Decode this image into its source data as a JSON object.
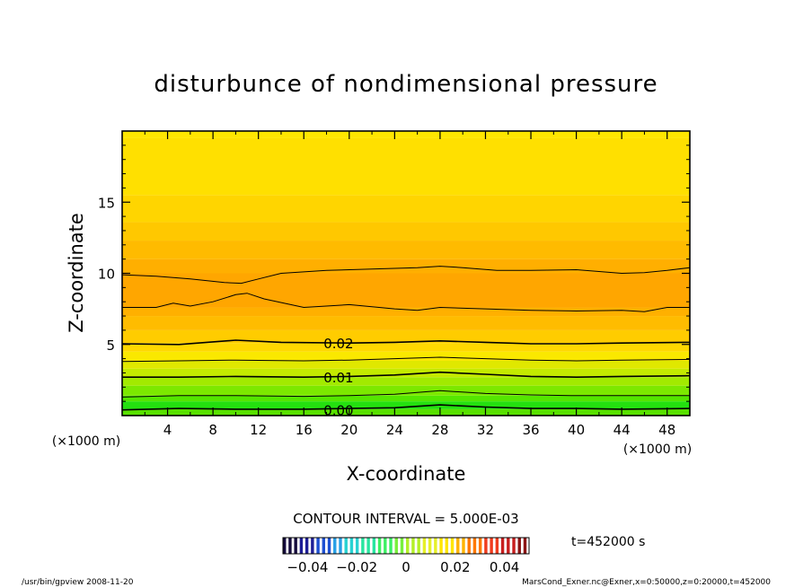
{
  "chart_data": {
    "type": "heatmap",
    "subtype": "filled-contour",
    "title": "disturbunce of nondimensional pressure",
    "xlabel": "X-coordinate",
    "ylabel": "Z-coordinate",
    "x_unit_note": "(×1000 m)",
    "y_unit_note": "(×1000 m)",
    "xlim": [
      0,
      50
    ],
    "ylim": [
      0,
      20
    ],
    "x_ticks": [
      4,
      8,
      12,
      16,
      20,
      24,
      28,
      32,
      36,
      40,
      44,
      48
    ],
    "y_ticks": [
      5,
      10,
      15
    ],
    "contour_interval_label": "CONTOUR INTERVAL = 5.000E-03",
    "contour_labels": [
      {
        "text": "0.02",
        "x": 17.5,
        "z": 5.1
      },
      {
        "text": "0.01",
        "x": 17.5,
        "z": 2.7
      },
      {
        "text": "0.00",
        "x": 17.5,
        "z": 0.4
      }
    ],
    "contour_lines": [
      {
        "level": 0.0,
        "points": [
          [
            0,
            0.4
          ],
          [
            5,
            0.5
          ],
          [
            10,
            0.45
          ],
          [
            16,
            0.45
          ],
          [
            20,
            0.5
          ],
          [
            24,
            0.55
          ],
          [
            28,
            0.75
          ],
          [
            32,
            0.6
          ],
          [
            36,
            0.5
          ],
          [
            40,
            0.5
          ],
          [
            44,
            0.45
          ],
          [
            50,
            0.5
          ]
        ]
      },
      {
        "level": 0.005,
        "points": [
          [
            0,
            1.3
          ],
          [
            5,
            1.4
          ],
          [
            10,
            1.4
          ],
          [
            16,
            1.35
          ],
          [
            20,
            1.4
          ],
          [
            24,
            1.5
          ],
          [
            28,
            1.75
          ],
          [
            32,
            1.55
          ],
          [
            36,
            1.45
          ],
          [
            40,
            1.4
          ],
          [
            44,
            1.4
          ],
          [
            50,
            1.4
          ]
        ]
      },
      {
        "level": 0.01,
        "points": [
          [
            0,
            2.7
          ],
          [
            5,
            2.7
          ],
          [
            10,
            2.75
          ],
          [
            16,
            2.7
          ],
          [
            20,
            2.75
          ],
          [
            24,
            2.85
          ],
          [
            28,
            3.05
          ],
          [
            32,
            2.9
          ],
          [
            36,
            2.75
          ],
          [
            40,
            2.7
          ],
          [
            44,
            2.75
          ],
          [
            50,
            2.8
          ]
        ]
      },
      {
        "level": 0.015,
        "points": [
          [
            0,
            3.8
          ],
          [
            5,
            3.85
          ],
          [
            10,
            3.9
          ],
          [
            16,
            3.85
          ],
          [
            20,
            3.9
          ],
          [
            24,
            4.0
          ],
          [
            28,
            4.1
          ],
          [
            32,
            4.0
          ],
          [
            36,
            3.9
          ],
          [
            40,
            3.85
          ],
          [
            44,
            3.9
          ],
          [
            50,
            3.95
          ]
        ]
      },
      {
        "level": 0.02,
        "points": [
          [
            0,
            5.05
          ],
          [
            5,
            5.0
          ],
          [
            10,
            5.3
          ],
          [
            14,
            5.15
          ],
          [
            20,
            5.1
          ],
          [
            24,
            5.15
          ],
          [
            28,
            5.25
          ],
          [
            32,
            5.15
          ],
          [
            36,
            5.05
          ],
          [
            40,
            5.05
          ],
          [
            44,
            5.1
          ],
          [
            50,
            5.15
          ]
        ]
      },
      {
        "level": 0.025,
        "points": [
          [
            0,
            7.6
          ],
          [
            3,
            7.6
          ],
          [
            4.5,
            7.9
          ],
          [
            6,
            7.7
          ],
          [
            8,
            8.0
          ],
          [
            10,
            8.5
          ],
          [
            11,
            8.6
          ],
          [
            12.5,
            8.2
          ],
          [
            16,
            7.6
          ],
          [
            20,
            7.8
          ],
          [
            24,
            7.5
          ],
          [
            26,
            7.4
          ],
          [
            28,
            7.6
          ],
          [
            32,
            7.5
          ],
          [
            36,
            7.4
          ],
          [
            40,
            7.35
          ],
          [
            44,
            7.4
          ],
          [
            46,
            7.3
          ],
          [
            48,
            7.6
          ],
          [
            50,
            7.6
          ]
        ]
      },
      {
        "level": 0.025,
        "points": [
          [
            0,
            9.9
          ],
          [
            3,
            9.8
          ],
          [
            6,
            9.6
          ],
          [
            9,
            9.35
          ],
          [
            10.5,
            9.3
          ],
          [
            12,
            9.6
          ],
          [
            14,
            10.0
          ],
          [
            18,
            10.2
          ],
          [
            22,
            10.3
          ],
          [
            26,
            10.4
          ],
          [
            28,
            10.5
          ],
          [
            30,
            10.4
          ],
          [
            33,
            10.2
          ],
          [
            36,
            10.2
          ],
          [
            40,
            10.25
          ],
          [
            44,
            10.0
          ],
          [
            46,
            10.05
          ],
          [
            48,
            10.2
          ],
          [
            50,
            10.4
          ]
        ]
      }
    ],
    "filled_bands": [
      {
        "z_bottom": 0.0,
        "z_top": 0.45,
        "color": "#58e000"
      },
      {
        "z_bottom": 0.45,
        "z_top": 1.0,
        "color": "#24e010"
      },
      {
        "z_bottom": 1.0,
        "z_top": 1.4,
        "color": "#54e600"
      },
      {
        "z_bottom": 1.4,
        "z_top": 2.1,
        "color": "#7ce800"
      },
      {
        "z_bottom": 2.1,
        "z_top": 2.7,
        "color": "#a2ea00"
      },
      {
        "z_bottom": 2.7,
        "z_top": 3.3,
        "color": "#c4ea00"
      },
      {
        "z_bottom": 3.3,
        "z_top": 3.85,
        "color": "#e0e800"
      },
      {
        "z_bottom": 3.85,
        "z_top": 4.5,
        "color": "#fae800"
      },
      {
        "z_bottom": 4.5,
        "z_top": 5.1,
        "color": "#ffd800"
      },
      {
        "z_bottom": 5.1,
        "z_top": 6.0,
        "color": "#ffcc00"
      },
      {
        "z_bottom": 6.0,
        "z_top": 7.0,
        "color": "#ffbc00"
      },
      {
        "z_bottom": 7.0,
        "z_top": 7.6,
        "color": "#ffb000"
      },
      {
        "z_bottom": 7.6,
        "z_top": 10.0,
        "color": "#ffa600"
      },
      {
        "z_bottom": 10.0,
        "z_top": 11.0,
        "color": "#ffaf00"
      },
      {
        "z_bottom": 11.0,
        "z_top": 12.3,
        "color": "#ffbb00"
      },
      {
        "z_bottom": 12.3,
        "z_top": 13.6,
        "color": "#ffc800"
      },
      {
        "z_bottom": 13.6,
        "z_top": 15.5,
        "color": "#ffd500"
      },
      {
        "z_bottom": 15.5,
        "z_top": 19.5,
        "color": "#ffe000"
      },
      {
        "z_bottom": 19.5,
        "z_top": 20.0,
        "color": "#ffe600"
      }
    ],
    "colorbar": {
      "vmin": -0.05,
      "vmax": 0.05,
      "tick_labels": [
        {
          "text": "−0.04",
          "value": -0.04
        },
        {
          "text": "−0.02",
          "value": -0.02
        },
        {
          "text": "0",
          "value": 0.0
        },
        {
          "text": "0.02",
          "value": 0.02
        },
        {
          "text": "0.04",
          "value": 0.04
        }
      ],
      "colors": [
        "#140a3c",
        "#1e1e96",
        "#1e50d2",
        "#28a0e6",
        "#28d2d2",
        "#28e6a0",
        "#3cf064",
        "#78f03c",
        "#b4f028",
        "#e6f028",
        "#ffe600",
        "#ffb400",
        "#ff7800",
        "#f03c1e",
        "#c81e1e",
        "#8c1414"
      ]
    },
    "time_label": "t=452000 s",
    "footer_left": "/usr/bin/gpview   2008-11-20",
    "footer_right": "MarsCond_Exner.nc@Exner,x=0:50000,z=0:20000,t=452000"
  }
}
